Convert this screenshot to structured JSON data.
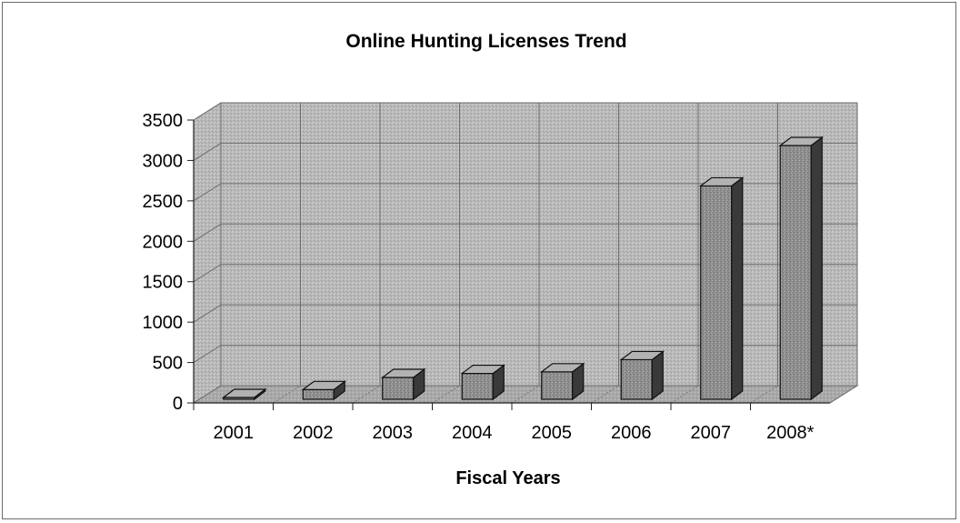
{
  "chart_data": {
    "type": "bar",
    "title": "Online Hunting Licenses Trend",
    "xlabel": "Fiscal Years",
    "ylabel": "",
    "categories": [
      "2001",
      "2002",
      "2003",
      "2004",
      "2005",
      "2006",
      "2007",
      "2008*"
    ],
    "values": [
      20,
      120,
      270,
      320,
      340,
      490,
      2640,
      3140
    ],
    "ylim": [
      0,
      3500
    ],
    "yticks": [
      "0",
      "500",
      "1000",
      "1500",
      "2000",
      "2500",
      "3000",
      "3500"
    ],
    "grid": true,
    "legend": "none",
    "style": "3d-column",
    "colors": {
      "wall": "#b9b9b9",
      "floor": "#a9a9a9",
      "bar_front": "#8e8e8e",
      "bar_top": "#b2b2b2",
      "bar_side": "#3a3a3a",
      "grid": "#6e6e6e",
      "frame_border": "#6a6a6a"
    }
  }
}
